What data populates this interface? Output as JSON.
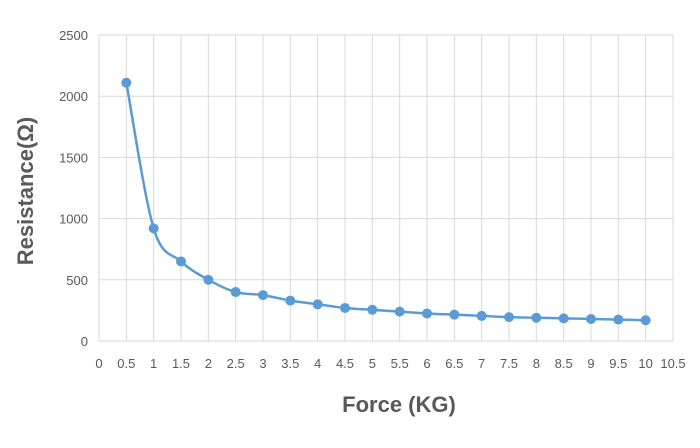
{
  "chart_data": {
    "type": "scatter",
    "title": "",
    "xlabel": "Force (KG)",
    "ylabel": "Resistance(Ω)",
    "xlim": [
      0,
      10.5
    ],
    "ylim": [
      0,
      2500
    ],
    "x_ticks": [
      "0",
      "0.5",
      "1",
      "1.5",
      "2",
      "2.5",
      "3",
      "3.5",
      "4",
      "4.5",
      "5",
      "5.5",
      "6",
      "6.5",
      "7",
      "7.5",
      "8",
      "8.5",
      "9",
      "9.5",
      "10",
      "10.5"
    ],
    "y_ticks": [
      "0",
      "500",
      "1000",
      "1500",
      "2000",
      "2500"
    ],
    "grid": true,
    "smooth_line": true,
    "series": [
      {
        "color": "#5b9bd5",
        "x": [
          0.5,
          1,
          1.5,
          2,
          2.5,
          3,
          3.5,
          4,
          4.5,
          5,
          5.5,
          6,
          6.5,
          7,
          7.5,
          8,
          8.5,
          9,
          9.5,
          10
        ],
        "y": [
          2110,
          920,
          650,
          500,
          400,
          375,
          330,
          300,
          270,
          255,
          240,
          225,
          215,
          205,
          195,
          190,
          185,
          180,
          175,
          170
        ]
      }
    ]
  }
}
